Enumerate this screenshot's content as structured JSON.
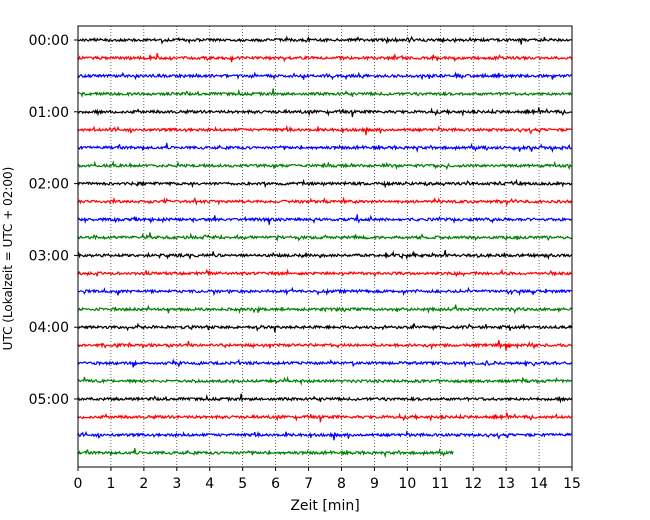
{
  "chart_data": {
    "type": "line",
    "title": "",
    "xlabel": "Zeit  [min]",
    "ylabel": "UTC (Lokalzeit = UTC + 02:00)",
    "xlim": [
      0,
      15
    ],
    "x_ticks": [
      0,
      1,
      2,
      3,
      4,
      5,
      6,
      7,
      8,
      9,
      10,
      11,
      12,
      13,
      14,
      15
    ],
    "y_tick_labels": [
      "00:00",
      "01:00",
      "02:00",
      "03:00",
      "04:00",
      "05:00"
    ],
    "x_grid": "dotted",
    "y_grid": false,
    "legend": "none",
    "trace_interval_min": 15,
    "color_cycle": [
      "#000000",
      "#ff0000",
      "#0000ff",
      "#008000"
    ],
    "series": [
      {
        "start": "00:00",
        "end_min": 15
      },
      {
        "start": "00:15",
        "end_min": 15
      },
      {
        "start": "00:30",
        "end_min": 15
      },
      {
        "start": "00:45",
        "end_min": 15
      },
      {
        "start": "01:00",
        "end_min": 15
      },
      {
        "start": "01:15",
        "end_min": 15
      },
      {
        "start": "01:30",
        "end_min": 15
      },
      {
        "start": "01:45",
        "end_min": 15
      },
      {
        "start": "02:00",
        "end_min": 15
      },
      {
        "start": "02:15",
        "end_min": 15
      },
      {
        "start": "02:30",
        "end_min": 15
      },
      {
        "start": "02:45",
        "end_min": 15
      },
      {
        "start": "03:00",
        "end_min": 15
      },
      {
        "start": "03:15",
        "end_min": 15
      },
      {
        "start": "03:30",
        "end_min": 15
      },
      {
        "start": "03:45",
        "end_min": 15
      },
      {
        "start": "04:00",
        "end_min": 15
      },
      {
        "start": "04:15",
        "end_min": 15
      },
      {
        "start": "04:30",
        "end_min": 15
      },
      {
        "start": "04:45",
        "end_min": 15
      },
      {
        "start": "05:00",
        "end_min": 15
      },
      {
        "start": "05:15",
        "end_min": 15
      },
      {
        "start": "05:30",
        "end_min": 15
      },
      {
        "start": "05:45",
        "end_min": 11.4
      }
    ]
  }
}
